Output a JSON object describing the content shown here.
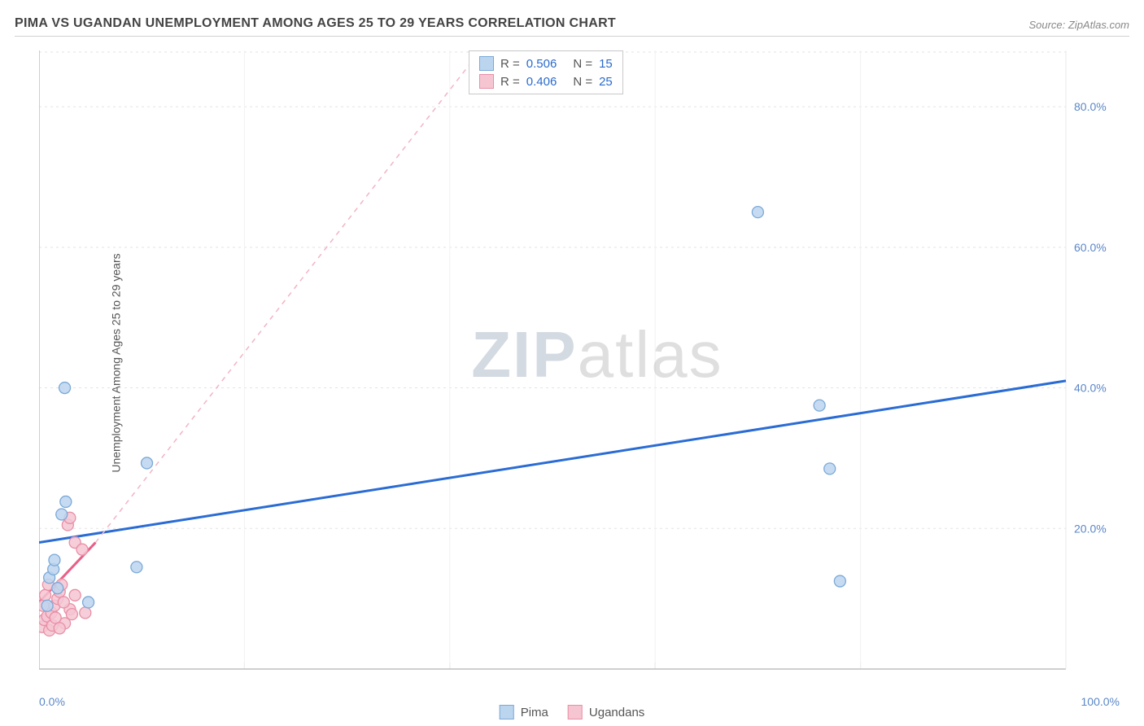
{
  "title": "PIMA VS UGANDAN UNEMPLOYMENT AMONG AGES 25 TO 29 YEARS CORRELATION CHART",
  "source": "Source: ZipAtlas.com",
  "ylabel": "Unemployment Among Ages 25 to 29 years",
  "watermark_zip": "ZIP",
  "watermark_atlas": "atlas",
  "chart": {
    "type": "scatter",
    "xlim": [
      0,
      100
    ],
    "ylim": [
      0,
      88
    ],
    "grid_color": "#e3e3e3",
    "background_color": "#ffffff",
    "axis_border_color": "#bfbfbf",
    "y_ticks": [
      {
        "v": 20,
        "label": "20.0%"
      },
      {
        "v": 40,
        "label": "40.0%"
      },
      {
        "v": 60,
        "label": "60.0%"
      },
      {
        "v": 80,
        "label": "80.0%"
      }
    ],
    "x_vgrids": [
      20,
      40,
      60,
      80,
      100
    ],
    "x_min_label": "0.0%",
    "x_max_label": "100.0%",
    "series": [
      {
        "name": "Pima",
        "color_fill": "#bcd5ef",
        "color_stroke": "#7aa9d8",
        "marker_radius": 7,
        "trend_color": "#2a6cd4",
        "trend_width": 3,
        "trend_dash": "",
        "trend_p1": {
          "x": 0,
          "y": 18
        },
        "trend_p2": {
          "x": 100,
          "y": 41
        },
        "points": [
          {
            "x": 1.0,
            "y": 13.0
          },
          {
            "x": 1.4,
            "y": 14.2
          },
          {
            "x": 2.2,
            "y": 22.0
          },
          {
            "x": 2.6,
            "y": 23.8
          },
          {
            "x": 2.5,
            "y": 40.0
          },
          {
            "x": 4.8,
            "y": 9.5
          },
          {
            "x": 9.5,
            "y": 14.5
          },
          {
            "x": 10.5,
            "y": 29.3
          },
          {
            "x": 70.0,
            "y": 65.0
          },
          {
            "x": 76.0,
            "y": 37.5
          },
          {
            "x": 77.0,
            "y": 28.5
          },
          {
            "x": 78.0,
            "y": 12.5
          },
          {
            "x": 1.8,
            "y": 11.5
          },
          {
            "x": 0.8,
            "y": 9.0
          },
          {
            "x": 1.5,
            "y": 15.5
          }
        ]
      },
      {
        "name": "Ugandans",
        "color_fill": "#f5c6d2",
        "color_stroke": "#e98fa6",
        "marker_radius": 7,
        "trend_color": "#e85f87",
        "trend_width": 3,
        "trend_dash": "",
        "trend_p1": {
          "x": 0,
          "y": 9.5
        },
        "trend_p2": {
          "x": 5.5,
          "y": 18
        },
        "guide_color": "#f2b4c4",
        "guide_dash": "6,6",
        "guide_p1": {
          "x": 5.5,
          "y": 18
        },
        "guide_p2": {
          "x": 43,
          "y": 88
        },
        "points": [
          {
            "x": 0.3,
            "y": 6.0
          },
          {
            "x": 0.5,
            "y": 7.0
          },
          {
            "x": 0.8,
            "y": 7.5
          },
          {
            "x": 1.0,
            "y": 5.5
          },
          {
            "x": 1.2,
            "y": 8.0
          },
          {
            "x": 1.5,
            "y": 9.0
          },
          {
            "x": 1.8,
            "y": 10.0
          },
          {
            "x": 2.0,
            "y": 11.0
          },
          {
            "x": 2.2,
            "y": 12.0
          },
          {
            "x": 2.5,
            "y": 6.5
          },
          {
            "x": 3.0,
            "y": 8.5
          },
          {
            "x": 3.2,
            "y": 7.8
          },
          {
            "x": 3.5,
            "y": 10.5
          },
          {
            "x": 0.4,
            "y": 9.0
          },
          {
            "x": 0.6,
            "y": 10.5
          },
          {
            "x": 0.9,
            "y": 12.0
          },
          {
            "x": 2.8,
            "y": 20.5
          },
          {
            "x": 3.0,
            "y": 21.5
          },
          {
            "x": 3.5,
            "y": 18.0
          },
          {
            "x": 4.2,
            "y": 17.0
          },
          {
            "x": 4.5,
            "y": 8.0
          },
          {
            "x": 1.3,
            "y": 6.2
          },
          {
            "x": 1.6,
            "y": 7.3
          },
          {
            "x": 2.0,
            "y": 5.8
          },
          {
            "x": 2.4,
            "y": 9.5
          }
        ]
      }
    ],
    "stats": [
      {
        "series": "Pima",
        "R": "0.506",
        "N": "15"
      },
      {
        "series": "Ugandans",
        "R": "0.406",
        "N": "25"
      }
    ],
    "stat_label_R": "R =",
    "stat_label_N": "N =",
    "legend": [
      {
        "label": "Pima"
      },
      {
        "label": "Ugandans"
      }
    ]
  }
}
